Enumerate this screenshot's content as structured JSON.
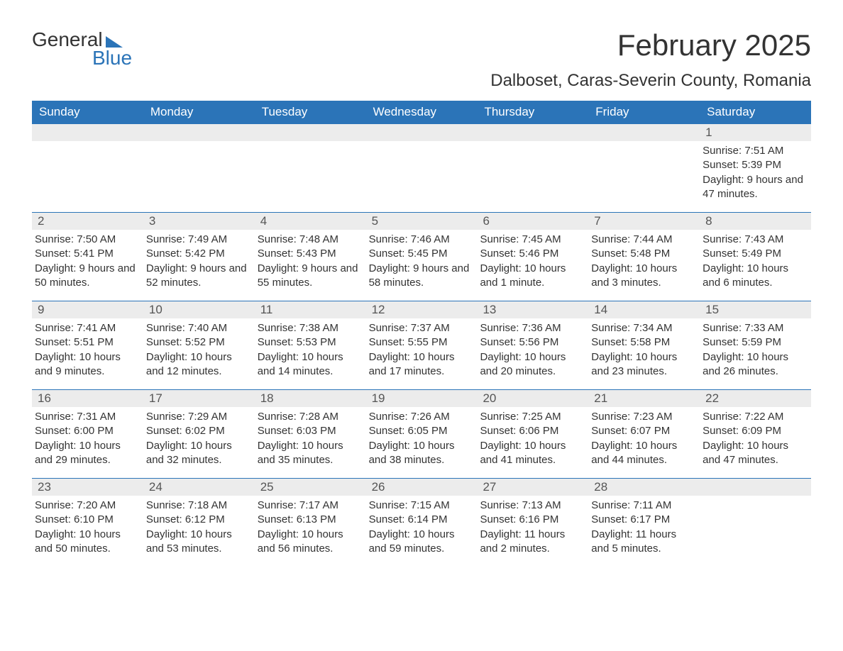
{
  "logo": {
    "text1": "General",
    "text2": "Blue"
  },
  "title": "February 2025",
  "location": "Dalboset, Caras-Severin County, Romania",
  "colors": {
    "header_bg": "#2b74b8",
    "header_text": "#ffffff",
    "daynum_bg": "#ececec",
    "text": "#333333",
    "accent": "#2b74b8"
  },
  "weekdays": [
    "Sunday",
    "Monday",
    "Tuesday",
    "Wednesday",
    "Thursday",
    "Friday",
    "Saturday"
  ],
  "weeks": [
    [
      {
        "n": "",
        "sunrise": "",
        "sunset": "",
        "daylight": ""
      },
      {
        "n": "",
        "sunrise": "",
        "sunset": "",
        "daylight": ""
      },
      {
        "n": "",
        "sunrise": "",
        "sunset": "",
        "daylight": ""
      },
      {
        "n": "",
        "sunrise": "",
        "sunset": "",
        "daylight": ""
      },
      {
        "n": "",
        "sunrise": "",
        "sunset": "",
        "daylight": ""
      },
      {
        "n": "",
        "sunrise": "",
        "sunset": "",
        "daylight": ""
      },
      {
        "n": "1",
        "sunrise": "Sunrise: 7:51 AM",
        "sunset": "Sunset: 5:39 PM",
        "daylight": "Daylight: 9 hours and 47 minutes."
      }
    ],
    [
      {
        "n": "2",
        "sunrise": "Sunrise: 7:50 AM",
        "sunset": "Sunset: 5:41 PM",
        "daylight": "Daylight: 9 hours and 50 minutes."
      },
      {
        "n": "3",
        "sunrise": "Sunrise: 7:49 AM",
        "sunset": "Sunset: 5:42 PM",
        "daylight": "Daylight: 9 hours and 52 minutes."
      },
      {
        "n": "4",
        "sunrise": "Sunrise: 7:48 AM",
        "sunset": "Sunset: 5:43 PM",
        "daylight": "Daylight: 9 hours and 55 minutes."
      },
      {
        "n": "5",
        "sunrise": "Sunrise: 7:46 AM",
        "sunset": "Sunset: 5:45 PM",
        "daylight": "Daylight: 9 hours and 58 minutes."
      },
      {
        "n": "6",
        "sunrise": "Sunrise: 7:45 AM",
        "sunset": "Sunset: 5:46 PM",
        "daylight": "Daylight: 10 hours and 1 minute."
      },
      {
        "n": "7",
        "sunrise": "Sunrise: 7:44 AM",
        "sunset": "Sunset: 5:48 PM",
        "daylight": "Daylight: 10 hours and 3 minutes."
      },
      {
        "n": "8",
        "sunrise": "Sunrise: 7:43 AM",
        "sunset": "Sunset: 5:49 PM",
        "daylight": "Daylight: 10 hours and 6 minutes."
      }
    ],
    [
      {
        "n": "9",
        "sunrise": "Sunrise: 7:41 AM",
        "sunset": "Sunset: 5:51 PM",
        "daylight": "Daylight: 10 hours and 9 minutes."
      },
      {
        "n": "10",
        "sunrise": "Sunrise: 7:40 AM",
        "sunset": "Sunset: 5:52 PM",
        "daylight": "Daylight: 10 hours and 12 minutes."
      },
      {
        "n": "11",
        "sunrise": "Sunrise: 7:38 AM",
        "sunset": "Sunset: 5:53 PM",
        "daylight": "Daylight: 10 hours and 14 minutes."
      },
      {
        "n": "12",
        "sunrise": "Sunrise: 7:37 AM",
        "sunset": "Sunset: 5:55 PM",
        "daylight": "Daylight: 10 hours and 17 minutes."
      },
      {
        "n": "13",
        "sunrise": "Sunrise: 7:36 AM",
        "sunset": "Sunset: 5:56 PM",
        "daylight": "Daylight: 10 hours and 20 minutes."
      },
      {
        "n": "14",
        "sunrise": "Sunrise: 7:34 AM",
        "sunset": "Sunset: 5:58 PM",
        "daylight": "Daylight: 10 hours and 23 minutes."
      },
      {
        "n": "15",
        "sunrise": "Sunrise: 7:33 AM",
        "sunset": "Sunset: 5:59 PM",
        "daylight": "Daylight: 10 hours and 26 minutes."
      }
    ],
    [
      {
        "n": "16",
        "sunrise": "Sunrise: 7:31 AM",
        "sunset": "Sunset: 6:00 PM",
        "daylight": "Daylight: 10 hours and 29 minutes."
      },
      {
        "n": "17",
        "sunrise": "Sunrise: 7:29 AM",
        "sunset": "Sunset: 6:02 PM",
        "daylight": "Daylight: 10 hours and 32 minutes."
      },
      {
        "n": "18",
        "sunrise": "Sunrise: 7:28 AM",
        "sunset": "Sunset: 6:03 PM",
        "daylight": "Daylight: 10 hours and 35 minutes."
      },
      {
        "n": "19",
        "sunrise": "Sunrise: 7:26 AM",
        "sunset": "Sunset: 6:05 PM",
        "daylight": "Daylight: 10 hours and 38 minutes."
      },
      {
        "n": "20",
        "sunrise": "Sunrise: 7:25 AM",
        "sunset": "Sunset: 6:06 PM",
        "daylight": "Daylight: 10 hours and 41 minutes."
      },
      {
        "n": "21",
        "sunrise": "Sunrise: 7:23 AM",
        "sunset": "Sunset: 6:07 PM",
        "daylight": "Daylight: 10 hours and 44 minutes."
      },
      {
        "n": "22",
        "sunrise": "Sunrise: 7:22 AM",
        "sunset": "Sunset: 6:09 PM",
        "daylight": "Daylight: 10 hours and 47 minutes."
      }
    ],
    [
      {
        "n": "23",
        "sunrise": "Sunrise: 7:20 AM",
        "sunset": "Sunset: 6:10 PM",
        "daylight": "Daylight: 10 hours and 50 minutes."
      },
      {
        "n": "24",
        "sunrise": "Sunrise: 7:18 AM",
        "sunset": "Sunset: 6:12 PM",
        "daylight": "Daylight: 10 hours and 53 minutes."
      },
      {
        "n": "25",
        "sunrise": "Sunrise: 7:17 AM",
        "sunset": "Sunset: 6:13 PM",
        "daylight": "Daylight: 10 hours and 56 minutes."
      },
      {
        "n": "26",
        "sunrise": "Sunrise: 7:15 AM",
        "sunset": "Sunset: 6:14 PM",
        "daylight": "Daylight: 10 hours and 59 minutes."
      },
      {
        "n": "27",
        "sunrise": "Sunrise: 7:13 AM",
        "sunset": "Sunset: 6:16 PM",
        "daylight": "Daylight: 11 hours and 2 minutes."
      },
      {
        "n": "28",
        "sunrise": "Sunrise: 7:11 AM",
        "sunset": "Sunset: 6:17 PM",
        "daylight": "Daylight: 11 hours and 5 minutes."
      },
      {
        "n": "",
        "sunrise": "",
        "sunset": "",
        "daylight": ""
      }
    ]
  ]
}
